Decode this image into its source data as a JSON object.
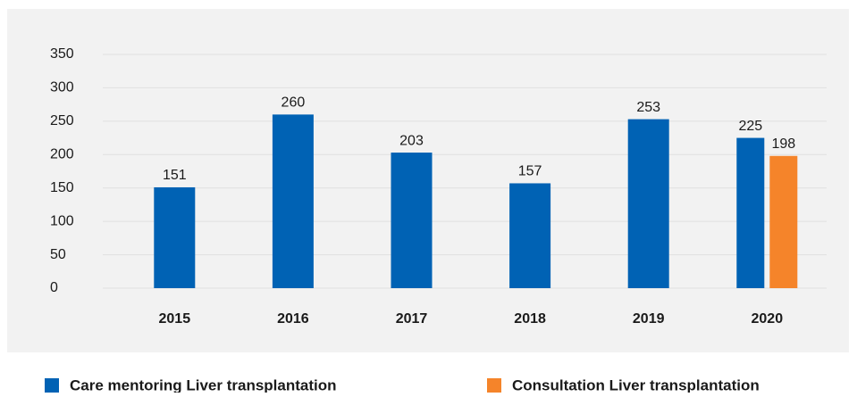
{
  "chart_data": {
    "type": "bar",
    "categories": [
      "2015",
      "2016",
      "2017",
      "2018",
      "2019",
      "2020"
    ],
    "series": [
      {
        "name": "Care mentoring Liver transplantation",
        "color": "#0062b4",
        "values": [
          151,
          260,
          203,
          157,
          253,
          225
        ]
      },
      {
        "name": "Consultation Liver transplantation",
        "color": "#f5842a",
        "values": [
          null,
          null,
          null,
          null,
          null,
          198
        ]
      }
    ],
    "ylim": [
      0,
      350
    ],
    "yticks": [
      0,
      50,
      100,
      150,
      200,
      250,
      300,
      350
    ],
    "grid": true
  }
}
